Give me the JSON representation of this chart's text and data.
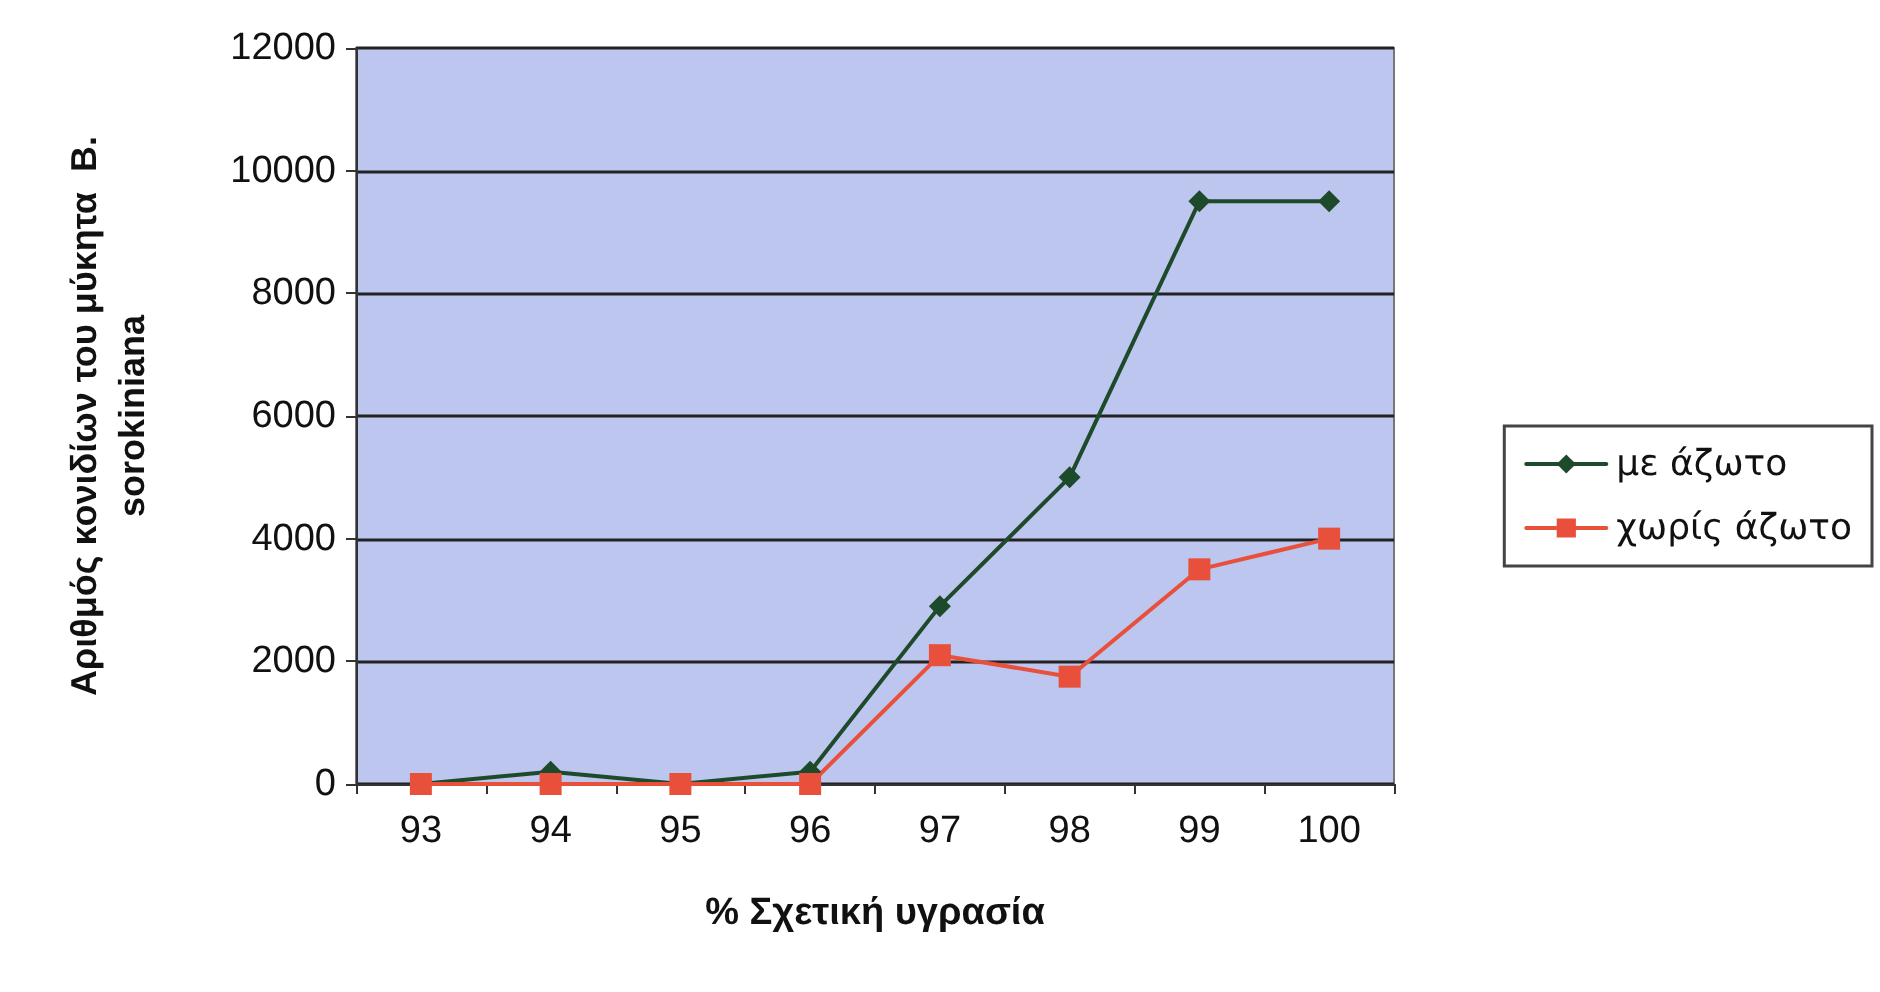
{
  "chart_data": {
    "type": "line",
    "xlabel": "% Σχετική υγρασία",
    "ylabel": "Αριθμός κονιδίων του μύκητα  B.\nsorokiniana",
    "categories": [
      "93",
      "94",
      "95",
      "96",
      "97",
      "98",
      "99",
      "100"
    ],
    "series": [
      {
        "name": "με άζωτο",
        "color": "#1e4a2c",
        "marker": "diamond",
        "values": [
          0,
          200,
          0,
          200,
          2900,
          5000,
          9500,
          9500
        ]
      },
      {
        "name": "χωρίς άζωτο",
        "color": "#e8503c",
        "marker": "square",
        "values": [
          0,
          0,
          0,
          0,
          2100,
          1750,
          3500,
          4000
        ]
      }
    ],
    "ylim": [
      0,
      12000
    ],
    "yticks": [
      0,
      2000,
      4000,
      6000,
      8000,
      10000,
      12000
    ],
    "grid": "y",
    "legend": "right",
    "line_style": "solid"
  }
}
